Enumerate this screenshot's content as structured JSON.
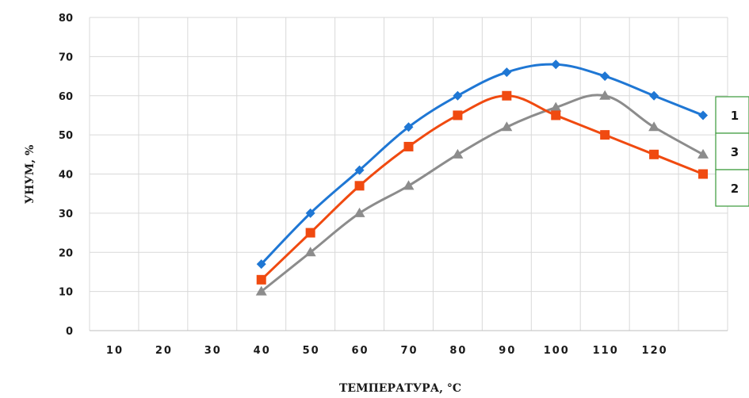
{
  "chart_data": {
    "type": "line",
    "xlabel": "ТЕМПЕРАТУРА,  °С",
    "ylabel": "УНУМ, %",
    "ylim": [
      0,
      80
    ],
    "y_ticks": [
      "0",
      "10",
      "20",
      "30",
      "40",
      "50",
      "60",
      "70",
      "80"
    ],
    "x_ticks": [
      "10",
      "20",
      "30",
      "40",
      "50",
      "60",
      "70",
      "80",
      "90",
      "100",
      "110",
      "120"
    ],
    "grid": true,
    "legend_placement": "right, boxed labels at series ends",
    "series": [
      {
        "name": "1",
        "color": "#1f77d4",
        "marker": "diamond",
        "x": [
          40,
          50,
          60,
          70,
          80,
          90,
          100,
          110,
          120,
          130
        ],
        "values": [
          17,
          30,
          41,
          52,
          60,
          66,
          68,
          65,
          60,
          55
        ]
      },
      {
        "name": "2",
        "color": "#f04a10",
        "marker": "square",
        "x": [
          40,
          50,
          60,
          70,
          80,
          90,
          100,
          110,
          120,
          130
        ],
        "values": [
          13,
          25,
          37,
          47,
          55,
          60,
          55,
          50,
          45,
          40
        ]
      },
      {
        "name": "3",
        "color": "#8c8c8c",
        "marker": "triangle",
        "x": [
          40,
          50,
          60,
          70,
          80,
          90,
          100,
          110,
          120,
          130
        ],
        "values": [
          10,
          20,
          30,
          37,
          45,
          52,
          57,
          60,
          52,
          45
        ]
      }
    ],
    "end_labels": [
      "1",
      "3",
      "2"
    ],
    "end_label_border_color": "#3a9a3a"
  }
}
